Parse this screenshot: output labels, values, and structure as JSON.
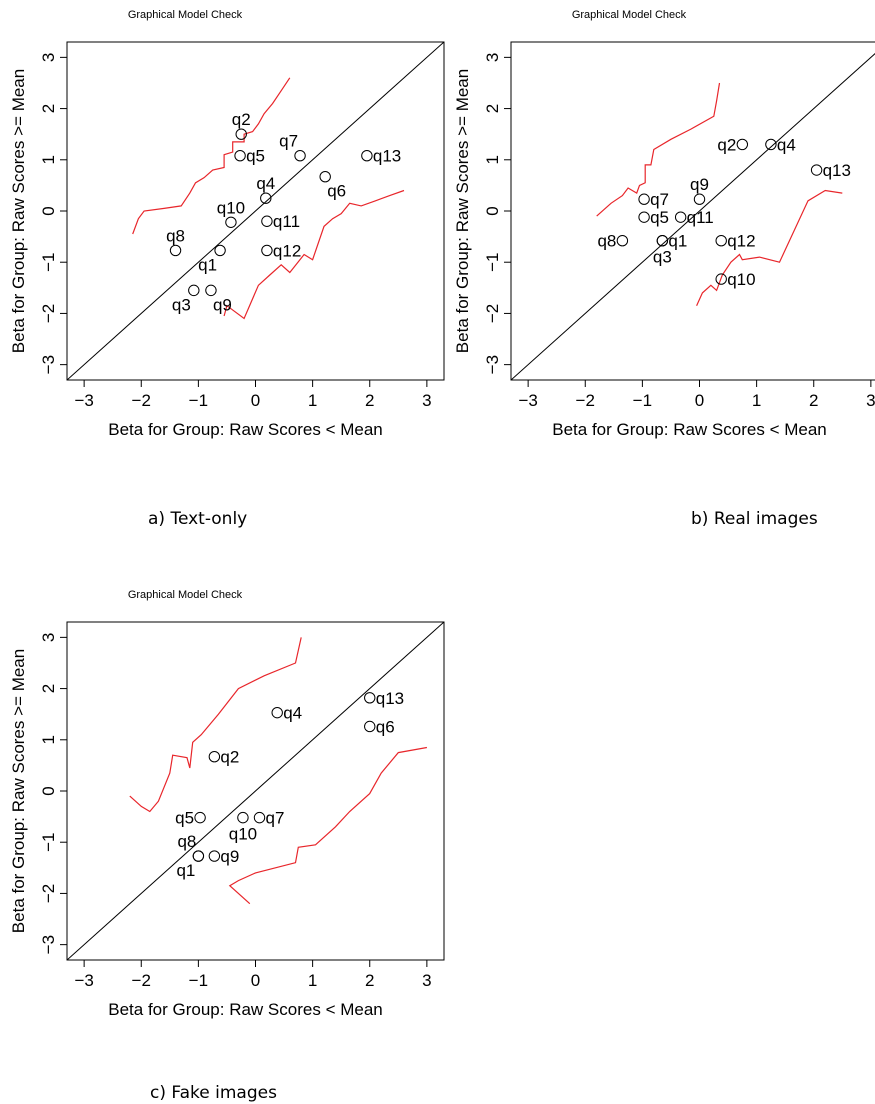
{
  "captions": {
    "a": "a) Text-only",
    "b": "b) Real images",
    "c": "c) Fake images"
  },
  "chart_data": [
    {
      "type": "scatter",
      "title": "Graphical Model Check",
      "xlabel": "Beta for Group: Raw Scores < Mean",
      "ylabel": "Beta for Group: Raw Scores >= Mean",
      "xlim": [
        -3.3,
        3.3
      ],
      "ylim": [
        -3.3,
        3.3
      ],
      "xticks": [
        -3,
        -2,
        -1,
        0,
        1,
        2,
        3
      ],
      "yticks": [
        -3,
        -2,
        -1,
        0,
        1,
        2,
        3
      ],
      "reference_line": "identity",
      "confidence_band_color": "#e8262b",
      "points": [
        {
          "label": "q1",
          "x": -0.62,
          "y": -0.77,
          "label_pos": "below-left"
        },
        {
          "label": "q2",
          "x": -0.25,
          "y": 1.5,
          "label_pos": "above"
        },
        {
          "label": "q3",
          "x": -1.08,
          "y": -1.55,
          "label_pos": "below-left"
        },
        {
          "label": "q4",
          "x": 0.18,
          "y": 0.25,
          "label_pos": "above"
        },
        {
          "label": "q5",
          "x": -0.27,
          "y": 1.08,
          "label_pos": "right"
        },
        {
          "label": "q6",
          "x": 1.22,
          "y": 0.67,
          "label_pos": "below-right"
        },
        {
          "label": "q7",
          "x": 0.78,
          "y": 1.08,
          "label_pos": "above-left"
        },
        {
          "label": "q8",
          "x": -1.4,
          "y": -0.77,
          "label_pos": "above"
        },
        {
          "label": "q9",
          "x": -0.78,
          "y": -1.55,
          "label_pos": "below-right"
        },
        {
          "label": "q10",
          "x": -0.43,
          "y": -0.22,
          "label_pos": "above"
        },
        {
          "label": "q11",
          "x": 0.2,
          "y": -0.2,
          "label_pos": "right"
        },
        {
          "label": "q12",
          "x": 0.2,
          "y": -0.77,
          "label_pos": "right"
        },
        {
          "label": "q13",
          "x": 1.95,
          "y": 1.08,
          "label_pos": "right"
        }
      ],
      "upper_band": [
        [
          -2.15,
          -0.45
        ],
        [
          -2.05,
          -0.15
        ],
        [
          -1.95,
          0.0
        ],
        [
          -1.6,
          0.05
        ],
        [
          -1.3,
          0.1
        ],
        [
          -1.15,
          0.35
        ],
        [
          -1.05,
          0.55
        ],
        [
          -0.9,
          0.65
        ],
        [
          -0.75,
          0.8
        ],
        [
          -0.55,
          0.85
        ],
        [
          -0.55,
          1.1
        ],
        [
          -0.4,
          1.15
        ],
        [
          -0.4,
          1.35
        ],
        [
          -0.2,
          1.35
        ],
        [
          -0.2,
          1.5
        ],
        [
          -0.05,
          1.55
        ],
        [
          0.05,
          1.7
        ],
        [
          0.15,
          1.9
        ],
        [
          0.3,
          2.1
        ],
        [
          0.45,
          2.35
        ],
        [
          0.6,
          2.6
        ]
      ],
      "lower_band": [
        [
          -0.55,
          -2.05
        ],
        [
          -0.5,
          -1.85
        ],
        [
          -0.2,
          -2.1
        ],
        [
          0.05,
          -1.45
        ],
        [
          0.25,
          -1.25
        ],
        [
          0.45,
          -1.05
        ],
        [
          0.6,
          -1.2
        ],
        [
          0.85,
          -0.85
        ],
        [
          1.0,
          -0.95
        ],
        [
          1.2,
          -0.3
        ],
        [
          1.35,
          -0.15
        ],
        [
          1.5,
          -0.05
        ],
        [
          1.65,
          0.15
        ],
        [
          1.85,
          0.1
        ],
        [
          2.1,
          0.2
        ],
        [
          2.35,
          0.3
        ],
        [
          2.6,
          0.4
        ]
      ]
    },
    {
      "type": "scatter",
      "title": "Graphical Model Check",
      "xlabel": "Beta for Group: Raw Scores < Mean",
      "ylabel": "Beta for Group: Raw Scores >= Mean",
      "xlim": [
        -3.3,
        3.3
      ],
      "ylim": [
        -3.3,
        3.3
      ],
      "xticks": [
        -3,
        -2,
        -1,
        0,
        1,
        2,
        3
      ],
      "yticks": [
        -3,
        -2,
        -1,
        0,
        1,
        2,
        3
      ],
      "reference_line": "identity",
      "confidence_band_color": "#e8262b",
      "points": [
        {
          "label": "q1",
          "x": -0.65,
          "y": -0.58,
          "label_pos": "right"
        },
        {
          "label": "q2",
          "x": 0.75,
          "y": 1.3,
          "label_pos": "left"
        },
        {
          "label": "q3",
          "x": -0.65,
          "y": -0.58,
          "label_pos": "below"
        },
        {
          "label": "q4",
          "x": 1.25,
          "y": 1.3,
          "label_pos": "right"
        },
        {
          "label": "q5",
          "x": -0.97,
          "y": -0.12,
          "label_pos": "right"
        },
        {
          "label": "q7",
          "x": -0.97,
          "y": 0.23,
          "label_pos": "right"
        },
        {
          "label": "q8",
          "x": -1.35,
          "y": -0.58,
          "label_pos": "left"
        },
        {
          "label": "q9",
          "x": 0.0,
          "y": 0.23,
          "label_pos": "above"
        },
        {
          "label": "q10",
          "x": 0.38,
          "y": -1.33,
          "label_pos": "right"
        },
        {
          "label": "q11",
          "x": -0.33,
          "y": -0.12,
          "label_pos": "right"
        },
        {
          "label": "q12",
          "x": 0.38,
          "y": -0.58,
          "label_pos": "right"
        },
        {
          "label": "q13",
          "x": 2.05,
          "y": 0.8,
          "label_pos": "right"
        }
      ],
      "upper_band": [
        [
          -1.8,
          -0.1
        ],
        [
          -1.55,
          0.15
        ],
        [
          -1.35,
          0.3
        ],
        [
          -1.25,
          0.45
        ],
        [
          -1.1,
          0.35
        ],
        [
          -1.05,
          0.5
        ],
        [
          -0.95,
          0.55
        ],
        [
          -0.95,
          0.9
        ],
        [
          -0.85,
          0.9
        ],
        [
          -0.8,
          1.2
        ],
        [
          -0.5,
          1.4
        ],
        [
          -0.15,
          1.6
        ],
        [
          0.25,
          1.85
        ],
        [
          0.3,
          2.15
        ],
        [
          0.35,
          2.5
        ]
      ],
      "lower_band": [
        [
          -0.05,
          -1.85
        ],
        [
          0.05,
          -1.6
        ],
        [
          0.2,
          -1.45
        ],
        [
          0.3,
          -1.55
        ],
        [
          0.4,
          -1.25
        ],
        [
          0.55,
          -1.0
        ],
        [
          0.7,
          -0.85
        ],
        [
          0.75,
          -0.95
        ],
        [
          1.05,
          -0.9
        ],
        [
          1.4,
          -1.0
        ],
        [
          1.9,
          0.2
        ],
        [
          2.2,
          0.4
        ],
        [
          2.5,
          0.35
        ]
      ]
    },
    {
      "type": "scatter",
      "title": "Graphical Model Check",
      "xlabel": "Beta for Group: Raw Scores < Mean",
      "ylabel": "Beta for Group: Raw Scores >= Mean",
      "xlim": [
        -3.3,
        3.3
      ],
      "ylim": [
        -3.3,
        3.3
      ],
      "xticks": [
        -3,
        -2,
        -1,
        0,
        1,
        2,
        3
      ],
      "yticks": [
        -3,
        -2,
        -1,
        0,
        1,
        2,
        3
      ],
      "reference_line": "identity",
      "confidence_band_color": "#e8262b",
      "points": [
        {
          "label": "q1",
          "x": -1.0,
          "y": -1.27,
          "label_pos": "below-left"
        },
        {
          "label": "q2",
          "x": -0.72,
          "y": 0.67,
          "label_pos": "right"
        },
        {
          "label": "q4",
          "x": 0.38,
          "y": 1.53,
          "label_pos": "right"
        },
        {
          "label": "q5",
          "x": -0.97,
          "y": -0.52,
          "label_pos": "left"
        },
        {
          "label": "q6",
          "x": 2.0,
          "y": 1.26,
          "label_pos": "right"
        },
        {
          "label": "q7",
          "x": 0.07,
          "y": -0.52,
          "label_pos": "right"
        },
        {
          "label": "q8",
          "x": -1.0,
          "y": -1.27,
          "label_pos": "above-left"
        },
        {
          "label": "q9",
          "x": -0.72,
          "y": -1.27,
          "label_pos": "right"
        },
        {
          "label": "q10",
          "x": -0.22,
          "y": -0.52,
          "label_pos": "below"
        },
        {
          "label": "q13",
          "x": 2.0,
          "y": 1.82,
          "label_pos": "right"
        }
      ],
      "upper_band": [
        [
          -2.2,
          -0.1
        ],
        [
          -2.0,
          -0.3
        ],
        [
          -1.85,
          -0.4
        ],
        [
          -1.7,
          -0.2
        ],
        [
          -1.5,
          0.35
        ],
        [
          -1.45,
          0.7
        ],
        [
          -1.2,
          0.65
        ],
        [
          -1.15,
          0.45
        ],
        [
          -1.1,
          0.95
        ],
        [
          -0.95,
          1.1
        ],
        [
          -0.65,
          1.5
        ],
        [
          -0.3,
          2.0
        ],
        [
          0.15,
          2.25
        ],
        [
          0.7,
          2.5
        ],
        [
          0.8,
          3.0
        ]
      ],
      "lower_band": [
        [
          -0.1,
          -2.2
        ],
        [
          -0.45,
          -1.85
        ],
        [
          -0.3,
          -1.75
        ],
        [
          0.0,
          -1.6
        ],
        [
          0.7,
          -1.4
        ],
        [
          0.75,
          -1.1
        ],
        [
          1.05,
          -1.05
        ],
        [
          1.4,
          -0.7
        ],
        [
          1.65,
          -0.4
        ],
        [
          2.0,
          -0.05
        ],
        [
          2.2,
          0.35
        ],
        [
          2.5,
          0.75
        ],
        [
          3.0,
          0.85
        ]
      ]
    }
  ]
}
